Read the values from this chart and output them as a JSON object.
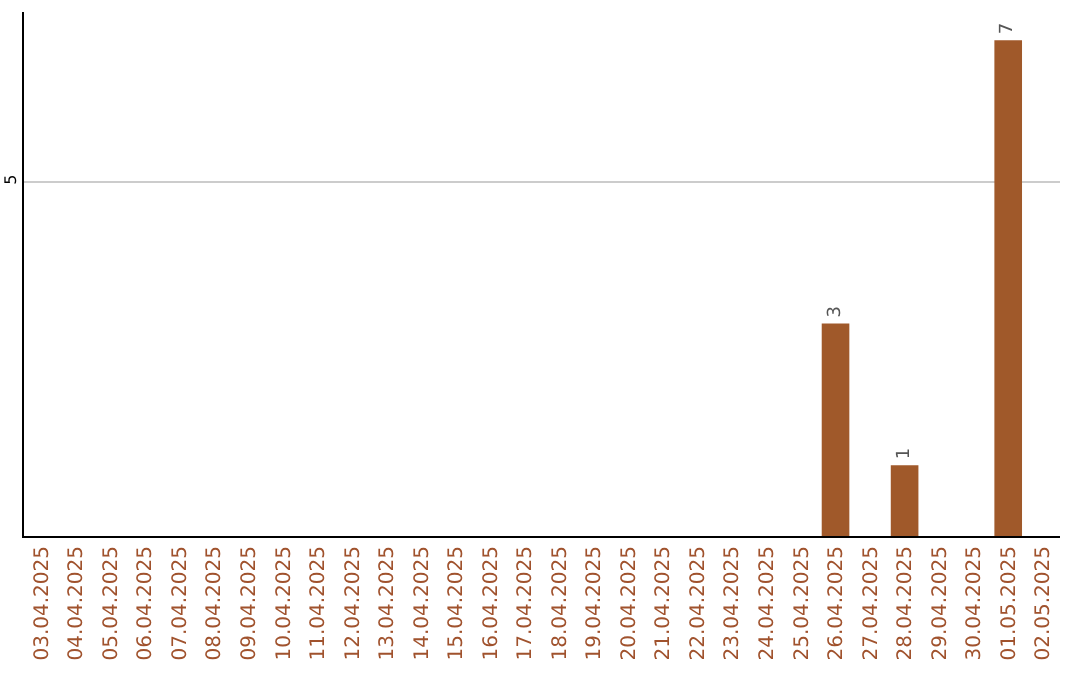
{
  "chart_data": {
    "type": "bar",
    "categories": [
      "03.04.2025",
      "04.04.2025",
      "05.04.2025",
      "06.04.2025",
      "07.04.2025",
      "08.04.2025",
      "09.04.2025",
      "10.04.2025",
      "11.04.2025",
      "12.04.2025",
      "13.04.2025",
      "14.04.2025",
      "15.04.2025",
      "16.04.2025",
      "17.04.2025",
      "18.04.2025",
      "19.04.2025",
      "20.04.2025",
      "21.04.2025",
      "22.04.2025",
      "23.04.2025",
      "24.04.2025",
      "25.04.2025",
      "26.04.2025",
      "27.04.2025",
      "28.04.2025",
      "29.04.2025",
      "30.04.2025",
      "01.05.2025",
      "02.05.2025"
    ],
    "values": [
      null,
      null,
      null,
      null,
      null,
      null,
      null,
      null,
      null,
      null,
      null,
      null,
      null,
      null,
      null,
      null,
      null,
      null,
      null,
      null,
      null,
      null,
      null,
      3,
      null,
      1,
      null,
      null,
      7,
      null
    ],
    "color": "#a0592a",
    "ylim": [
      0,
      7.4
    ],
    "yticks": [
      5
    ],
    "grid": "y",
    "data_labels": true
  }
}
